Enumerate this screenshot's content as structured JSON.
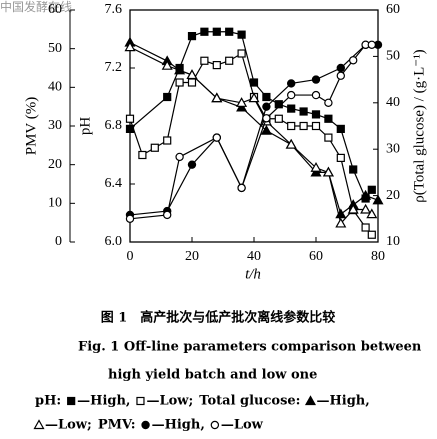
{
  "watermark": "中国发酵在线",
  "chart_data": {
    "type": "line",
    "xlabel": "t/h",
    "xlim": [
      0,
      80
    ],
    "xticks": [
      0,
      20,
      40,
      60,
      80
    ],
    "groups": [
      {
        "legend": "pH:",
        "ylabel": "pH",
        "ylim": [
          6.0,
          7.6
        ],
        "yticks": [
          {
            "value": 6.0,
            "label": "6.0"
          },
          6.4,
          6.8,
          7.2,
          {
            "value": 7.6,
            "label": "7.6"
          }
        ],
        "series": [
          {
            "name": "—High,",
            "marker": "square",
            "filled": true,
            "x": [
              0,
              12,
              16,
              20,
              24,
              28,
              32,
              36,
              40,
              44,
              48,
              52,
              56,
              60,
              64,
              68,
              72,
              76,
              78
            ],
            "values": [
              6.78,
              7.0,
              7.2,
              7.42,
              7.45,
              7.45,
              7.45,
              7.43,
              7.1,
              7.0,
              6.95,
              6.92,
              6.9,
              6.88,
              6.85,
              6.78,
              6.5,
              6.3,
              6.36
            ]
          },
          {
            "name": "—Low;",
            "marker": "square",
            "filled": false,
            "x": [
              0,
              4,
              8,
              12,
              16,
              20,
              24,
              28,
              32,
              36,
              40,
              44,
              48,
              52,
              56,
              60,
              64,
              68,
              72,
              76,
              78
            ],
            "values": [
              6.85,
              6.6,
              6.65,
              6.7,
              7.1,
              7.1,
              7.25,
              7.22,
              7.25,
              7.3,
              7.0,
              6.85,
              6.85,
              6.8,
              6.8,
              6.8,
              6.72,
              6.58,
              6.22,
              6.1,
              6.05
            ]
          }
        ]
      },
      {
        "legend": "Total glucose:",
        "ylabel": "ρ(Total glucose) / (g·L⁻¹)",
        "ylim": [
          10,
          60
        ],
        "yticks": [
          10,
          20,
          30,
          40,
          50,
          60
        ],
        "series": [
          {
            "name": "—High,",
            "marker": "triangle",
            "filled": true,
            "x": [
              0,
              12,
              16,
              20,
              28,
              36,
              44,
              52,
              60,
              64,
              68,
              72,
              76,
              80
            ],
            "values": [
              53,
              49,
              47,
              46,
              41,
              39,
              34,
              31,
              25,
              25,
              16,
              18,
              20,
              19
            ]
          },
          {
            "name": "—Low;",
            "marker": "triangle",
            "filled": false,
            "x": [
              0,
              12,
              20,
              28,
              36,
              40,
              44,
              52,
              60,
              64,
              68,
              72,
              76,
              78
            ],
            "values": [
              52,
              48,
              46,
              41,
              40,
              41,
              36,
              31,
              26,
              25,
              14,
              17,
              17,
              16
            ]
          }
        ]
      },
      {
        "legend": "PMV:",
        "ylabel": "PMV (%)",
        "ylim": [
          0,
          60
        ],
        "yticks": [
          0,
          10,
          20,
          30,
          40,
          50,
          60
        ],
        "series": [
          {
            "name": "—High,",
            "marker": "circle",
            "filled": true,
            "x": [
              0,
              12,
              20,
              28,
              36,
              44,
              52,
              60,
              68,
              76,
              80
            ],
            "values": [
              7,
              8,
              20,
              27,
              14,
              35,
              41,
              42,
              45,
              51,
              51
            ]
          },
          {
            "name": "—Low",
            "marker": "circle",
            "filled": false,
            "x": [
              0,
              12,
              16,
              28,
              36,
              44,
              52,
              60,
              64,
              68,
              72,
              76,
              78
            ],
            "values": [
              6,
              7,
              22,
              27,
              14,
              32,
              38,
              38,
              36,
              43,
              47,
              51,
              51
            ]
          }
        ]
      }
    ]
  },
  "caption": {
    "cn": "图 1　高产批次与低产批次离线参数比较",
    "en1": "Fig. 1  Off-line parameters comparison between",
    "en2": "high yield batch and low one"
  }
}
